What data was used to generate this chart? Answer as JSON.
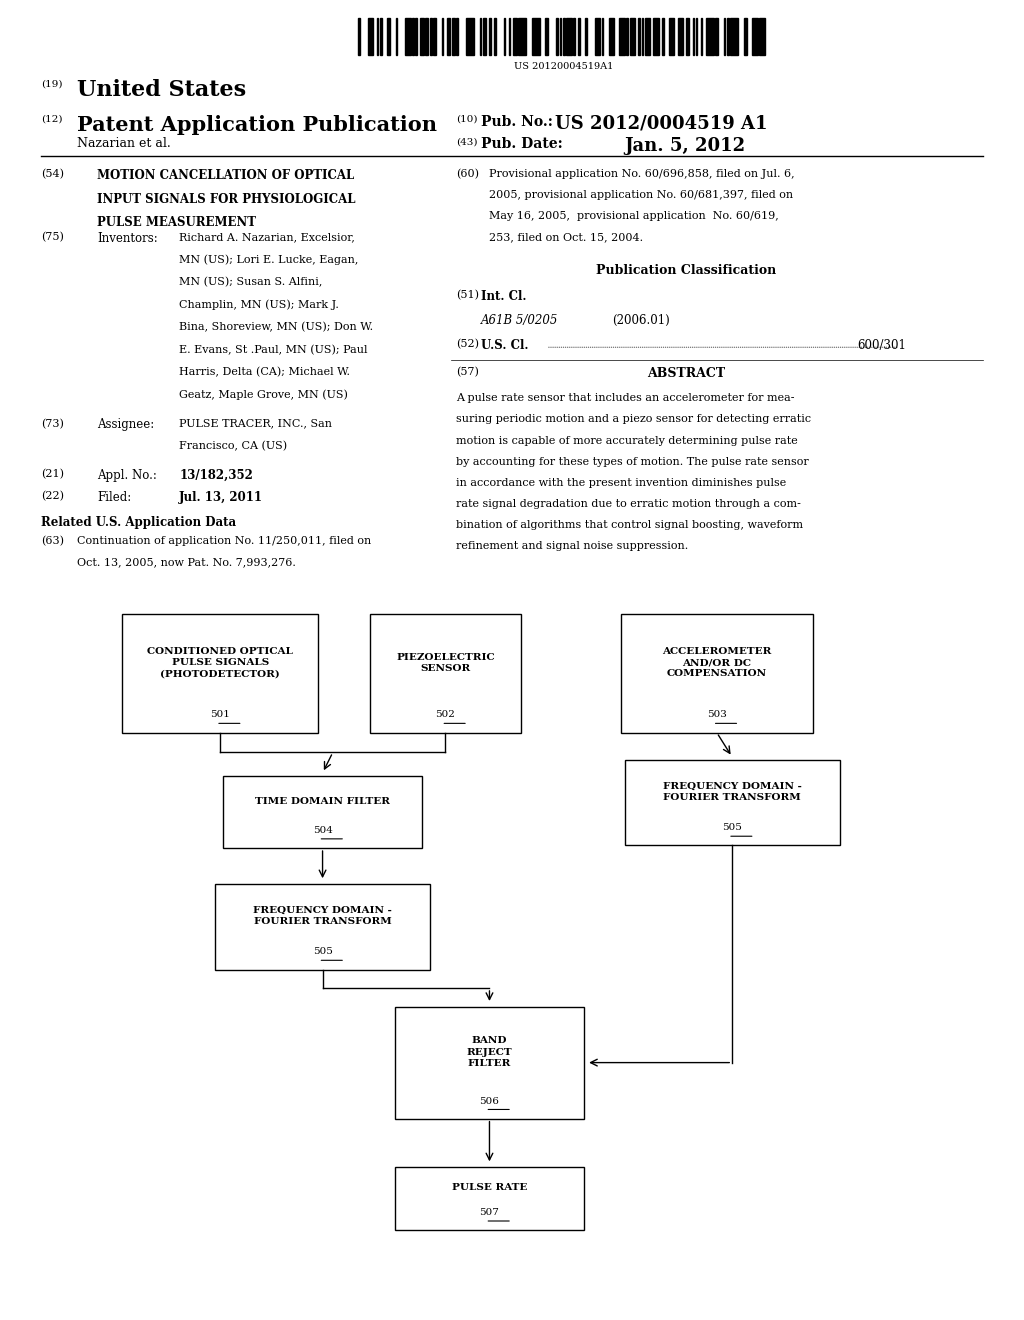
{
  "background_color": "#ffffff",
  "barcode_text": "US 20120004519A1",
  "header": {
    "number_19": "(19)",
    "united_states": "United States",
    "number_12": "(12)",
    "patent_app": "Patent Application Publication",
    "number_10": "(10)",
    "pub_no_label": "Pub. No.:",
    "pub_no_val": "US 2012/0004519 A1",
    "authors": "Nazarian et al.",
    "number_43": "(43)",
    "pub_date_label": "Pub. Date:",
    "pub_date_val": "Jan. 5, 2012"
  },
  "left_col": {
    "s54_num": "(54)",
    "s54_title_line1": "MOTION CANCELLATION OF OPTICAL",
    "s54_title_line2": "INPUT SIGNALS FOR PHYSIOLOGICAL",
    "s54_title_line3": "PULSE MEASUREMENT",
    "s75_num": "(75)",
    "s75_label": "Inventors:",
    "s75_text": "Richard A. Nazarian, Excelsior,\nMN (US); Lori E. Lucke, Eagan,\nMN (US); Susan S. Alfini,\nChamplin, MN (US); Mark J.\nBina, Shoreview, MN (US); Don W.\nE. Evans, St .Paul, MN (US); Paul\nHarris, Delta (CA); Michael W.\nGeatz, Maple Grove, MN (US)",
    "s73_num": "(73)",
    "s73_label": "Assignee:",
    "s73_text": "PULSE TRACER, INC., San\nFrancisco, CA (US)",
    "s21_num": "(21)",
    "s21_label": "Appl. No.:",
    "s21_text": "13/182,352",
    "s22_num": "(22)",
    "s22_label": "Filed:",
    "s22_text": "Jul. 13, 2011",
    "related_header": "Related U.S. Application Data",
    "s63_num": "(63)",
    "s63_text": "Continuation of application No. 11/250,011, filed on\nOct. 13, 2005, now Pat. No. 7,993,276."
  },
  "right_col": {
    "s60_num": "(60)",
    "s60_text": "Provisional application No. 60/696,858, filed on Jul. 6,\n2005, provisional application No. 60/681,397, filed on\nMay 16, 2005,  provisional application  No. 60/619,\n253, filed on Oct. 15, 2004.",
    "pub_class_header": "Publication Classification",
    "s51_num": "(51)",
    "s51_label": "Int. Cl.",
    "s51_code": "A61B 5/0205",
    "s51_year": "(2006.01)",
    "s52_num": "(52)",
    "s52_label": "U.S. Cl.",
    "s52_val": "600/301",
    "s57_num": "(57)",
    "s57_header": "ABSTRACT",
    "s57_text": "A pulse rate sensor that includes an accelerometer for mea-\nsuring periodic motion and a piezo sensor for detecting erratic\nmotion is capable of more accurately determining pulse rate\nby accounting for these types of motion. The pulse rate sensor\nin accordance with the present invention diminishes pulse\nrate signal degradation due to erratic motion through a com-\nbination of algorithms that control signal boosting, waveform\nrefinement and signal noise suppression."
  }
}
